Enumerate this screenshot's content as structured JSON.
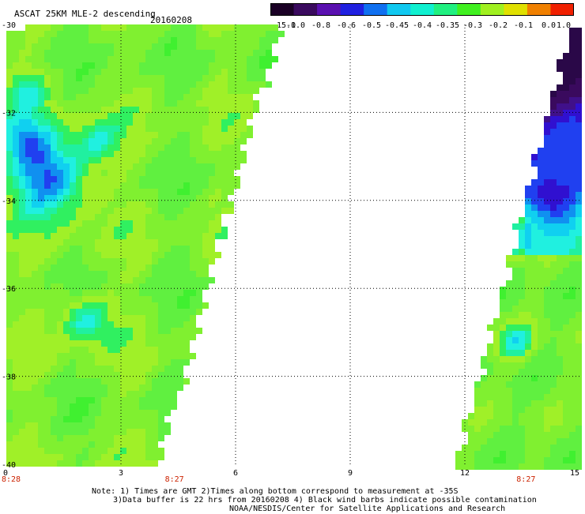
{
  "header": {
    "title": "ASCAT 25KM MLE-2 descending",
    "date": "20160208"
  },
  "colorbar": {
    "labels": [
      "-15.0",
      "-1.0",
      "-0.8",
      "-0.6",
      "-0.5",
      "-0.45",
      "-0.4",
      "-0.35",
      "-0.3",
      "-0.2",
      "-0.1",
      "0.0",
      "1.0"
    ],
    "colors": [
      "#1a0025",
      "#3a0a5e",
      "#5a10b0",
      "#2020e0",
      "#1070f0",
      "#10c8f0",
      "#10f0d0",
      "#20f080",
      "#40f020",
      "#a0f020",
      "#e0e000",
      "#f08000",
      "#f02000"
    ]
  },
  "axes": {
    "y_ticks": [
      "-30",
      "-32",
      "-34",
      "-36",
      "-38",
      "-40"
    ],
    "x_ticks": [
      "0",
      "3",
      "6",
      "9",
      "12",
      "15"
    ],
    "time_labels": [
      "8:28",
      "8:27",
      "8:27"
    ]
  },
  "notes": {
    "line1": "Note: 1) Times are GMT 2)Times along bottom correspond to measurement at -35S",
    "line2": "3)Data buffer is 22 hrs from 20160208 4) Black wind barbs indicate possible contamination",
    "line3": "NOAA/NESDIS/Center for Satellite Applications and Research"
  }
}
